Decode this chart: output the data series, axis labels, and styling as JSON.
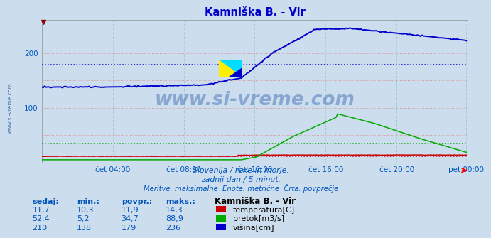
{
  "title": "Kamniška B. - Vir",
  "title_color": "#0000cc",
  "bg_color": "#ccdded",
  "grid_h_color": "#dd8888",
  "grid_v_color": "#88bbbb",
  "xlim": [
    0,
    288
  ],
  "ylim": [
    0,
    260
  ],
  "yticks": [
    100,
    200
  ],
  "ytick_labels": [
    "100",
    "200"
  ],
  "xtick_positions": [
    48,
    96,
    144,
    192,
    240,
    287
  ],
  "xtick_labels": [
    "čet 04:00",
    "čet 08:00",
    "čet 12:00",
    "čet 16:00",
    "čet 20:00",
    "pet 00:00"
  ],
  "avg_visina": 179,
  "avg_pretok": 34.7,
  "avg_temp": 11.9,
  "temp_color": "#cc0000",
  "pretok_color": "#00aa00",
  "visina_color": "#0000cc",
  "text_color": "#0055bb",
  "watermark": "www.si-vreme.com",
  "footer1": "Slovenija / reke in morje.",
  "footer2": "zadnji dan / 5 minut.",
  "footer3": "Meritve: maksimalne  Enote: metrične  Črta: povprečje",
  "legend_title": "Kamniška B. - Vir",
  "leg_labels": [
    "temperatura[C]",
    "pretok[m3/s]",
    "višina[cm]"
  ],
  "leg_colors": [
    "#cc0000",
    "#00aa00",
    "#0000cc"
  ],
  "table_headers": [
    "sedaj:",
    "min.:",
    "povpr.:",
    "maks.:"
  ],
  "table_data": [
    [
      "11,7",
      "10,3",
      "11,9",
      "14,3"
    ],
    [
      "52,4",
      "5,2",
      "34,7",
      "88,9"
    ],
    [
      "210",
      "138",
      "179",
      "236"
    ]
  ]
}
